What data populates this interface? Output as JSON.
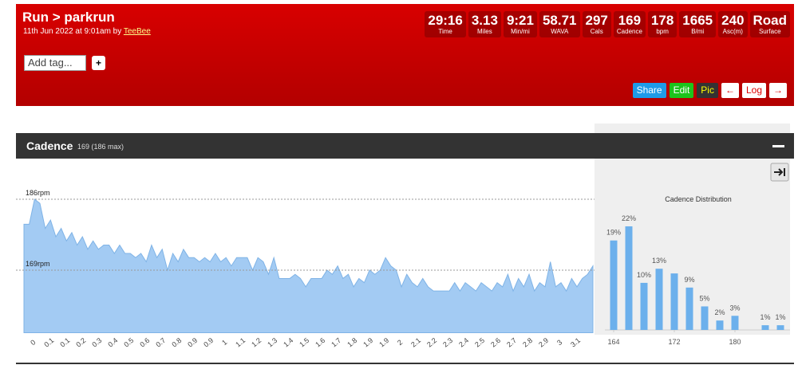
{
  "header": {
    "title": "Run > parkrun",
    "subtitle": "11th Jun 2022 at 9:01am by",
    "author": "TeeBee"
  },
  "stats": [
    {
      "value": "29:16",
      "label": "Time"
    },
    {
      "value": "3.13",
      "label": "Miles"
    },
    {
      "value": "9:21",
      "label": "Min/mi"
    },
    {
      "value": "58.71",
      "label": "WAVA"
    },
    {
      "value": "297",
      "label": "Cals"
    },
    {
      "value": "169",
      "label": "Cadence"
    },
    {
      "value": "178",
      "label": "bpm"
    },
    {
      "value": "1665",
      "label": "B/mi"
    },
    {
      "value": "240",
      "label": "Asc(m)"
    },
    {
      "value": "Road",
      "label": "Surface"
    }
  ],
  "tag_input": "Add tag...",
  "add_button": "+",
  "actions": [
    "Share",
    "Edit",
    "Pic",
    "←",
    "Log",
    "→"
  ],
  "panel": {
    "title": "Cadence",
    "summary": "169 (186 max)"
  },
  "chart_data": [
    {
      "type": "area",
      "color": "#a3cbf3",
      "values": [
        180,
        180,
        186,
        185,
        179,
        181,
        177,
        179,
        176,
        178,
        175,
        177,
        174,
        176,
        174,
        175,
        175,
        173,
        175,
        173,
        173,
        172,
        173,
        171,
        175,
        172,
        174,
        169,
        173,
        171,
        174,
        172,
        172,
        171,
        172,
        171,
        173,
        171,
        172,
        170,
        172,
        172,
        172,
        169,
        172,
        171,
        168,
        172,
        167,
        167,
        167,
        168,
        167,
        165,
        167,
        167,
        167,
        169,
        168,
        170,
        167,
        168,
        165,
        167,
        166,
        169,
        168,
        169,
        172,
        170,
        169,
        165,
        168,
        166,
        165,
        167,
        165,
        164,
        164,
        164,
        164,
        166,
        164,
        166,
        165,
        164,
        166,
        165,
        164,
        166,
        165,
        168,
        164,
        167,
        165,
        168,
        164,
        166,
        165,
        171,
        165,
        166,
        164,
        167,
        165,
        167,
        168,
        170
      ],
      "categories": [
        null,
        null,
        "0",
        null,
        null,
        "0.1",
        null,
        null,
        "0.1",
        null,
        null,
        "0.2",
        null,
        null,
        "0.3",
        null,
        null,
        "0.4",
        null,
        null,
        "0.5",
        null,
        null,
        "0.6",
        null,
        null,
        "0.7",
        null,
        null,
        "0.8",
        null,
        null,
        "0.9",
        null,
        null,
        "0.9",
        null,
        null,
        "1",
        null,
        null,
        "1.1",
        null,
        null,
        "1.2",
        null,
        null,
        "1.3",
        null,
        null,
        "1.4",
        null,
        null,
        "1.5",
        null,
        null,
        "1.6",
        null,
        null,
        "1.7",
        null,
        null,
        "1.8",
        null,
        null,
        "1.9",
        null,
        null,
        "1.9",
        null,
        null,
        "2",
        null,
        null,
        "2.1",
        null,
        null,
        "2.2",
        null,
        null,
        "2.3",
        null,
        null,
        "2.4",
        null,
        null,
        "2.5",
        null,
        null,
        "2.6",
        null,
        null,
        "2.7",
        null,
        null,
        "2.8",
        null,
        null,
        "2.9",
        null,
        null,
        "3",
        null,
        null,
        "3.1",
        null,
        null,
        null
      ],
      "ylim": [
        154,
        188
      ],
      "reference_lines": [
        {
          "value": 186,
          "label": "186rpm"
        },
        {
          "value": 169,
          "label": "169rpm"
        }
      ]
    },
    {
      "type": "bar",
      "title": "Cadence Distribution",
      "color": "#6cb0ec",
      "x": [
        164,
        166,
        168,
        170,
        172,
        174,
        176,
        178,
        180,
        184,
        186
      ],
      "values": [
        19,
        22,
        10,
        13,
        12,
        9,
        5,
        2,
        3,
        1,
        1
      ],
      "value_labels": [
        "19%",
        "22%",
        "10%",
        "13%",
        null,
        "9%",
        "5%",
        "2%",
        "3%",
        "1%",
        "1%"
      ],
      "xlim": [
        162.5,
        187.5
      ],
      "xticks": [
        164,
        172,
        180
      ],
      "ylim": [
        0,
        25
      ]
    }
  ]
}
